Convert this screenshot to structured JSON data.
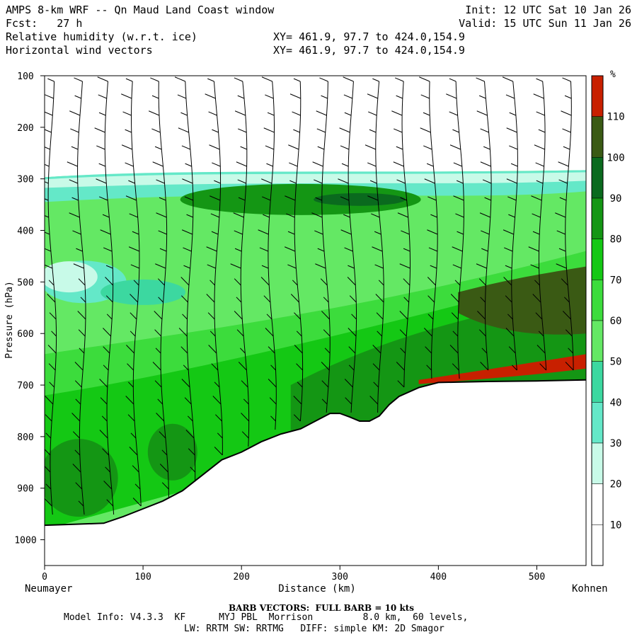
{
  "header": {
    "title": "AMPS 8-km WRF -- Qn Maud Land Coast window",
    "init": "Init: 12 UTC Sat 10 Jan 26",
    "fcst": "Fcst:   27 h",
    "valid": "Valid: 15 UTC Sun 11 Jan 26",
    "field1": "Relative humidity (w.r.t. ice)",
    "field1_xy": "XY= 461.9, 97.7 to 424.0,154.9",
    "field2": "Horizontal wind vectors",
    "field2_xy": "XY= 461.9, 97.7 to 424.0,154.9"
  },
  "footer": {
    "barb_note": "BARB VECTORS:  FULL BARB = 10 kts",
    "model_line1": "Model Info: V4.3.3  KF      MYJ PBL  Morrison         8.0 km,  60 levels,",
    "model_line2": "LW: RRTM SW: RRTMG   DIFF: simple KM: 2D Smagor"
  },
  "colors": {
    "c0": "#ffffff",
    "c30": "#c8fae8",
    "c40": "#64e8c8",
    "c50": "#3cd8a0",
    "c60": "#64e864",
    "c70": "#3cdc3c",
    "c80": "#14c814",
    "c90": "#149614",
    "c100": "#0a6a1e",
    "c110": "#3a5a14",
    "c120": "#c82000",
    "terrain": "#000000"
  },
  "chart_data": {
    "type": "heatmap",
    "title": "Relative humidity (w.r.t. ice) cross-section with horizontal wind barbs",
    "xlabel": "Distance (km)",
    "ylabel": "Pressure (hPa)",
    "xlim": [
      0,
      550
    ],
    "ylim": [
      1050,
      100
    ],
    "xticks": [
      0,
      100,
      200,
      300,
      400,
      500
    ],
    "yticks": [
      100,
      200,
      300,
      400,
      500,
      600,
      700,
      800,
      900,
      1000
    ],
    "x_left_label": "Neumayer",
    "x_right_label": "Kohnen",
    "colorbar": {
      "unit": "%",
      "levels": [
        10,
        20,
        30,
        40,
        50,
        60,
        70,
        80,
        90,
        100,
        110
      ]
    },
    "terrain_profile": {
      "x_km": [
        0,
        30,
        60,
        80,
        100,
        120,
        140,
        160,
        180,
        200,
        220,
        240,
        260,
        280,
        290,
        300,
        310,
        320,
        330,
        340,
        350,
        360,
        380,
        400,
        450,
        500,
        550
      ],
      "p_hpa": [
        972,
        970,
        968,
        955,
        940,
        925,
        905,
        875,
        845,
        830,
        810,
        795,
        785,
        765,
        755,
        755,
        762,
        770,
        770,
        760,
        738,
        722,
        705,
        695,
        693,
        692,
        690
      ]
    },
    "rh_top_boundary_hpa": 290,
    "wind_barb_columns_km": [
      0,
      30,
      58,
      85,
      113,
      140,
      168,
      195,
      223,
      250,
      278,
      305,
      333,
      360,
      388,
      415,
      443,
      470,
      498,
      525
    ]
  }
}
